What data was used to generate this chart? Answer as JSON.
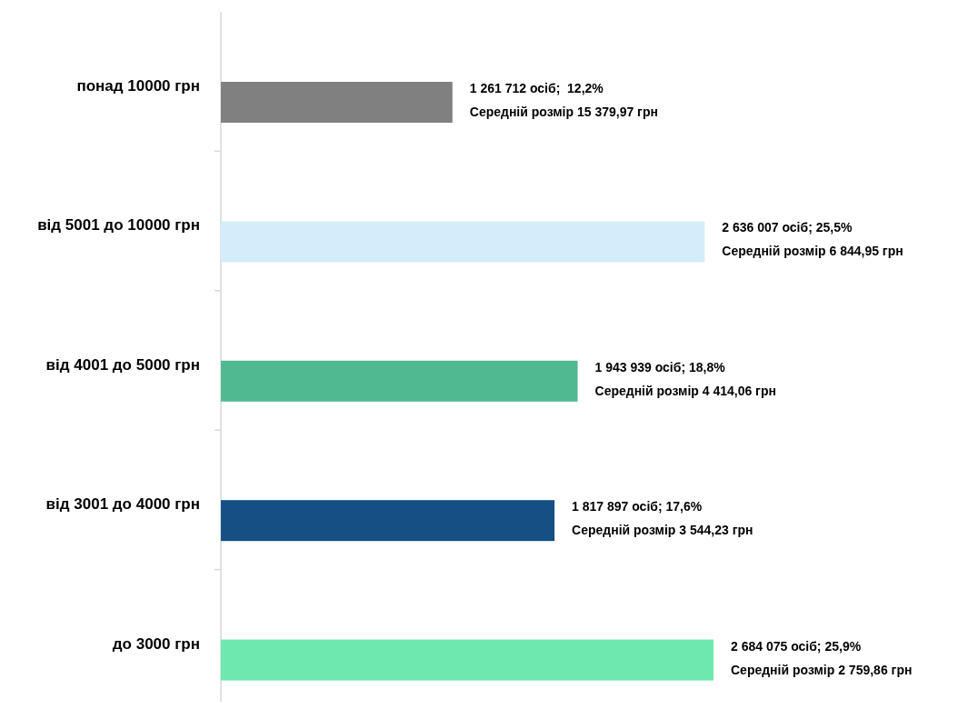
{
  "chart_data": {
    "type": "bar",
    "orientation": "horizontal",
    "categories": [
      "понад 10000 грн",
      "від 5001 до 10000 грн",
      "від 4001 до 5000 грн",
      "від 3001 до 4000 грн",
      "до 3000 грн"
    ],
    "values": [
      1261712,
      2636007,
      1943939,
      1817897,
      2684075
    ],
    "colors": [
      "#808080",
      "#d4edfa",
      "#4fba92",
      "#154f84",
      "#6ee8ae"
    ],
    "value_labels": [
      "1 261 712 осіб;  12,2%\nСередній розмір 15 379,97 грн",
      "2 636 007 осіб; 25,5%\nСередній розмір 6 844,95 грн",
      "1 943 939 осіб; 18,8%\nСередній розмір 4 414,06 грн",
      "1 817 897 осіб; 17,6%\nСередній розмір 3 544,23 грн",
      "2 684 075 осіб; 25,9%\nСередній розмір 2 759,86 грн"
    ]
  }
}
